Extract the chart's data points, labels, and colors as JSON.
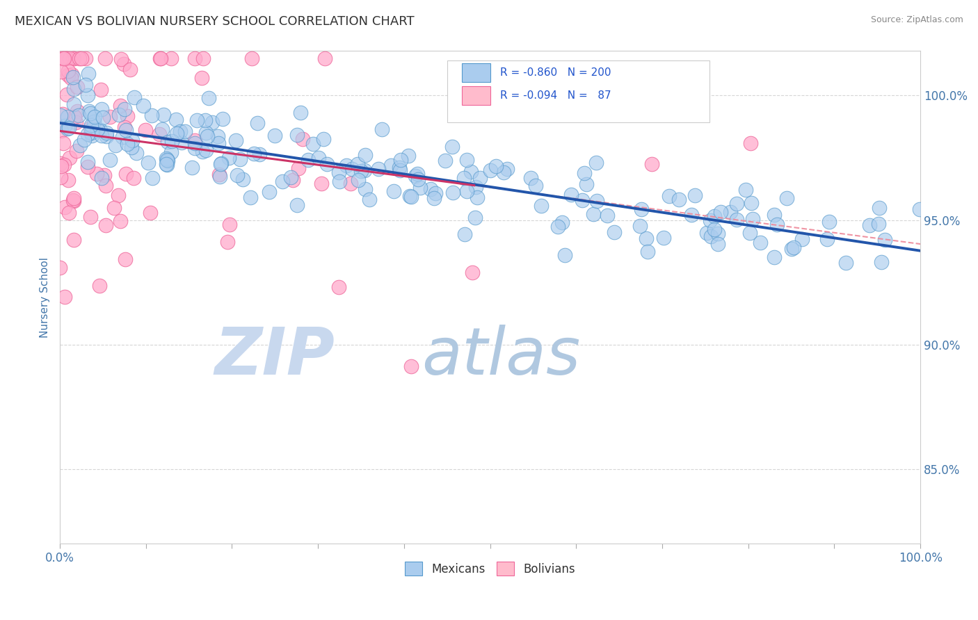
{
  "title": "MEXICAN VS BOLIVIAN NURSERY SCHOOL CORRELATION CHART",
  "source": "Source: ZipAtlas.com",
  "ylabel": "Nursery School",
  "x_min": 0.0,
  "x_max": 100.0,
  "y_min": 82.0,
  "y_max": 101.8,
  "right_yticks": [
    85.0,
    90.0,
    95.0,
    100.0
  ],
  "right_yticklabels": [
    "85.0%",
    "90.0%",
    "95.0%",
    "100.0%"
  ],
  "mexican_color": "#aaccee",
  "bolivian_color": "#ffaacc",
  "mexican_edge": "#5599cc",
  "bolivian_edge": "#ee6699",
  "blue_R": -0.86,
  "blue_N": 200,
  "pink_R": -0.094,
  "pink_N": 87,
  "trend_blue_color": "#2255aa",
  "trend_pink_color": "#cc3366",
  "trend_pink_dash_color": "#ee8899",
  "legend_blue_fill": "#aaccee",
  "legend_pink_fill": "#ffbbcc",
  "legend_blue_edge": "#5599cc",
  "legend_pink_edge": "#ee6699",
  "watermark_zip_color": "#c8d8ee",
  "watermark_atlas_color": "#b0c8e0",
  "background_color": "#ffffff",
  "grid_color": "#cccccc",
  "title_color": "#333333",
  "axis_label_color": "#4477aa",
  "legend_text_color": "#2255cc",
  "n_value_color": "#cc4400",
  "bottom_legend_color": "#333333"
}
